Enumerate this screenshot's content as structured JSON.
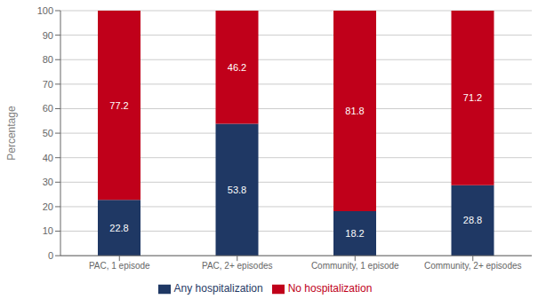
{
  "chart_data": {
    "type": "bar",
    "stacked": true,
    "categories": [
      "PAC, 1 episode",
      "PAC, 2+ episodes",
      "Community, 1 episode",
      "Community, 2+ episodes"
    ],
    "series": [
      {
        "name": "Any hospitalization",
        "color": "#1F3864",
        "values": [
          22.8,
          53.8,
          18.2,
          28.8
        ]
      },
      {
        "name": "No hospitalization",
        "color": "#C0001A",
        "values": [
          77.2,
          46.2,
          81.8,
          71.2
        ]
      }
    ],
    "ylabel": "Percentage",
    "ylim": [
      0,
      100
    ],
    "yticks": [
      0,
      10,
      20,
      30,
      40,
      50,
      60,
      70,
      80,
      90,
      100
    ],
    "grid": true,
    "legend": "bottom",
    "data_labels": true
  }
}
